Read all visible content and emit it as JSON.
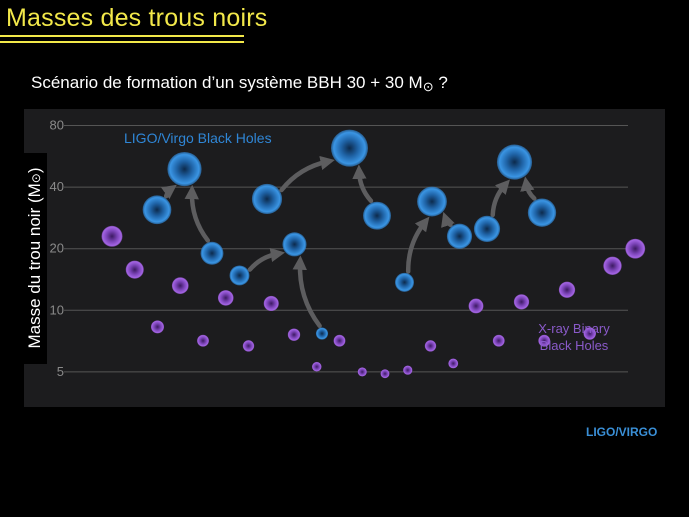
{
  "slide": {
    "title": "Masses des trous noirs",
    "subtitle_main": "Scénario de formation d’un système BBH 30 + 30 M",
    "subtitle_sun": "⊙",
    "subtitle_end": " ?",
    "source": "LIGO/VIRGO"
  },
  "colors": {
    "title": "#f2e84a",
    "ligo_blue": "#2f86d6",
    "xray_purple": "#9a58d8",
    "grid": "#555555",
    "panel": "#1c1c1e"
  },
  "chart_data": {
    "type": "scatter",
    "ylabel": "Masse du trou noir (M",
    "ylabel_sun": "⊙",
    "ylabel_end": ")",
    "y_scale": "log",
    "ylim": [
      3.9,
      88
    ],
    "yticks": [
      5,
      10,
      20,
      40,
      80
    ],
    "ytick_labels": [
      "5",
      "10",
      "20",
      "40",
      "80"
    ],
    "grid": true,
    "annotations": [
      {
        "text": "LIGO/Virgo Black Holes"
      },
      {
        "lines": [
          "X-ray Binary",
          "Black Holes"
        ]
      }
    ],
    "series": [
      {
        "name": "LIGO/Virgo Black Holes",
        "points": [
          {
            "x": 1,
            "y": 31
          },
          {
            "x": 2,
            "y": 49
          },
          {
            "x": 3,
            "y": 19
          },
          {
            "x": 4,
            "y": 14.8
          },
          {
            "x": 5,
            "y": 35
          },
          {
            "x": 6,
            "y": 21
          },
          {
            "x": 7,
            "y": 7.7
          },
          {
            "x": 8,
            "y": 62
          },
          {
            "x": 9,
            "y": 29
          },
          {
            "x": 10,
            "y": 13.7
          },
          {
            "x": 11,
            "y": 34
          },
          {
            "x": 12,
            "y": 23
          },
          {
            "x": 13,
            "y": 25
          },
          {
            "x": 14,
            "y": 53
          },
          {
            "x": 15,
            "y": 30
          }
        ],
        "merge_arrows": [
          {
            "from": 1,
            "to": 2
          },
          {
            "from": 3,
            "to": 2
          },
          {
            "from": 4,
            "to": 6
          },
          {
            "from": 7,
            "to": 6
          },
          {
            "from": 5,
            "to": 8
          },
          {
            "from": 9,
            "to": 8
          },
          {
            "from": 10,
            "to": 11
          },
          {
            "from": 12,
            "to": 11
          },
          {
            "from": 13,
            "to": 14
          },
          {
            "from": 15,
            "to": 14
          }
        ]
      },
      {
        "name": "X-ray Binary Black Holes",
        "points": [
          {
            "x": 1,
            "y": 23
          },
          {
            "x": 2,
            "y": 15.8
          },
          {
            "x": 3,
            "y": 8.3
          },
          {
            "x": 4,
            "y": 13.2
          },
          {
            "x": 5,
            "y": 7.1
          },
          {
            "x": 6,
            "y": 11.5
          },
          {
            "x": 7,
            "y": 6.7
          },
          {
            "x": 8,
            "y": 10.8
          },
          {
            "x": 9,
            "y": 7.6
          },
          {
            "x": 10,
            "y": 5.3
          },
          {
            "x": 11,
            "y": 7.1
          },
          {
            "x": 12,
            "y": 5.0
          },
          {
            "x": 13,
            "y": 4.9
          },
          {
            "x": 14,
            "y": 5.1
          },
          {
            "x": 15,
            "y": 6.7
          },
          {
            "x": 16,
            "y": 5.5
          },
          {
            "x": 17,
            "y": 10.5
          },
          {
            "x": 18,
            "y": 7.1
          },
          {
            "x": 19,
            "y": 11.0
          },
          {
            "x": 20,
            "y": 7.1
          },
          {
            "x": 21,
            "y": 12.6
          },
          {
            "x": 22,
            "y": 7.7
          },
          {
            "x": 23,
            "y": 16.5
          },
          {
            "x": 24,
            "y": 20
          }
        ]
      }
    ]
  }
}
